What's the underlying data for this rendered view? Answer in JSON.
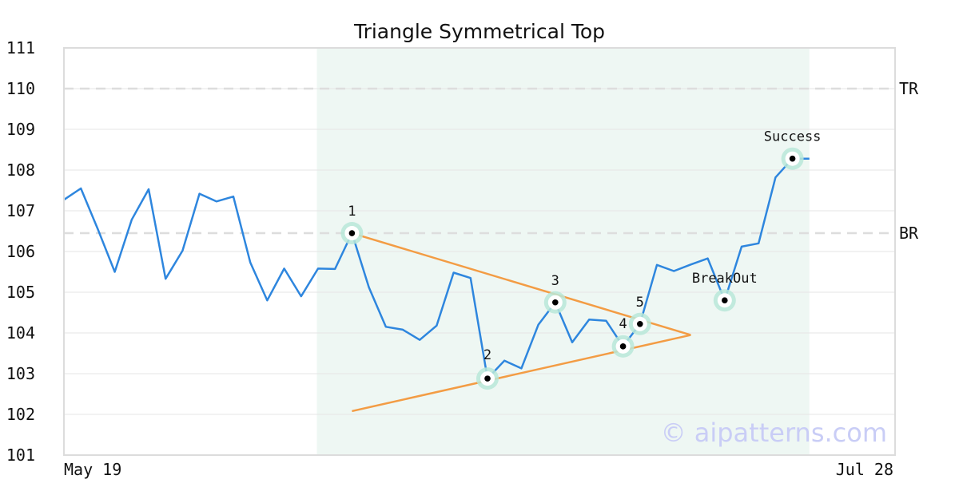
{
  "chart_data": {
    "type": "line",
    "title": "Triangle Symmetrical Top",
    "xlabel": "",
    "ylabel": "",
    "x_tick_labels": [
      "May 19",
      "Jul 28"
    ],
    "ylim": [
      101,
      111
    ],
    "y_ticks": [
      101,
      102,
      103,
      104,
      105,
      106,
      107,
      108,
      109,
      110,
      111
    ],
    "grid": true,
    "series": [
      {
        "color": "#2e86de",
        "values": [
          107.27,
          107.55,
          106.55,
          105.5,
          106.78,
          107.53,
          105.33,
          106.02,
          107.42,
          107.23,
          107.35,
          105.73,
          104.8,
          105.58,
          104.9,
          105.58,
          105.57,
          106.45,
          105.12,
          104.15,
          104.08,
          103.83,
          104.18,
          105.48,
          105.35,
          102.88,
          103.32,
          103.13,
          104.2,
          104.75,
          103.77,
          104.33,
          104.3,
          103.67,
          104.22,
          105.67,
          105.52,
          105.68,
          105.83,
          104.8,
          106.12,
          106.2,
          107.82,
          108.28,
          108.28
        ]
      }
    ],
    "highlight_region": {
      "start_index": 15,
      "end_index": 44,
      "color": "#eef7f3"
    },
    "reference_lines": [
      {
        "label": "TR",
        "y": 110,
        "color": "#dddddd"
      },
      {
        "label": "BR",
        "y": 106.45,
        "color": "#dddddd"
      }
    ],
    "trendlines": [
      {
        "color": "#f39c44",
        "from": {
          "x_index": 17,
          "y": 106.45
        },
        "to": {
          "x_index": 37,
          "y": 103.95
        }
      },
      {
        "color": "#f39c44",
        "from": {
          "x_index": 17,
          "y": 102.08
        },
        "to": {
          "x_index": 37,
          "y": 103.95
        }
      }
    ],
    "annotations": [
      {
        "label": "1",
        "x_index": 17,
        "y": 106.45
      },
      {
        "label": "2",
        "x_index": 25,
        "y": 102.88
      },
      {
        "label": "3",
        "x_index": 29,
        "y": 104.75
      },
      {
        "label": "4",
        "x_index": 33,
        "y": 103.67
      },
      {
        "label": "5",
        "x_index": 34,
        "y": 104.22
      },
      {
        "label": "BreakOut",
        "x_index": 39,
        "y": 104.8
      },
      {
        "label": "Success",
        "x_index": 43,
        "y": 108.28
      }
    ],
    "watermark": "© aipatterns.com"
  }
}
